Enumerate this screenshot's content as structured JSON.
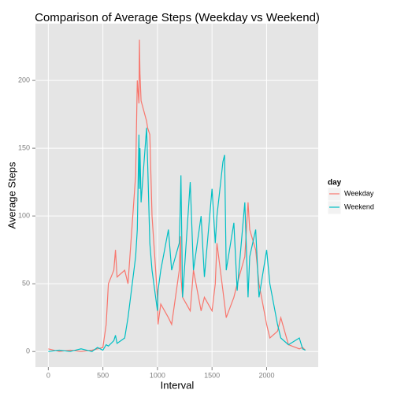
{
  "chart_data": {
    "type": "line",
    "title": "Comparison of Average Steps (Weekday vs Weekend)",
    "x_label": "Interval",
    "y_label": "Average Steps",
    "legend_title": "day",
    "legend": "right",
    "grid": true,
    "x": [
      0,
      100,
      200,
      300,
      400,
      450,
      500,
      530,
      550,
      600,
      615,
      630,
      700,
      730,
      800,
      815,
      830,
      835,
      840,
      850,
      900,
      910,
      930,
      950,
      1000,
      1005,
      1030,
      1100,
      1130,
      1200,
      1210,
      1215,
      1230,
      1300,
      1330,
      1400,
      1430,
      1500,
      1530,
      1545,
      1600,
      1615,
      1630,
      1700,
      1730,
      1800,
      1830,
      1845,
      1900,
      1930,
      2000,
      2030,
      2100,
      2130,
      2200,
      2300,
      2330,
      2355
    ],
    "series": [
      {
        "name": "Weekday",
        "color": "#F8766D",
        "values": [
          2,
          0,
          1,
          0,
          1,
          2,
          3,
          20,
          50,
          60,
          75,
          55,
          60,
          50,
          130,
          200,
          183,
          230,
          205,
          185,
          170,
          165,
          160,
          100,
          40,
          20,
          35,
          25,
          20,
          60,
          85,
          55,
          40,
          30,
          60,
          30,
          40,
          30,
          50,
          80,
          45,
          35,
          25,
          40,
          50,
          70,
          110,
          90,
          75,
          50,
          20,
          10,
          15,
          25,
          5,
          2,
          3,
          1
        ]
      },
      {
        "name": "Weekend",
        "color": "#00BFC4",
        "values": [
          0,
          1,
          0,
          2,
          0,
          3,
          1,
          5,
          4,
          8,
          12,
          6,
          10,
          25,
          70,
          90,
          160,
          120,
          150,
          110,
          165,
          140,
          80,
          60,
          30,
          45,
          60,
          90,
          60,
          80,
          110,
          130,
          40,
          125,
          60,
          100,
          55,
          120,
          80,
          100,
          140,
          145,
          60,
          95,
          45,
          110,
          40,
          70,
          90,
          40,
          75,
          50,
          20,
          10,
          5,
          10,
          2,
          1
        ]
      }
    ],
    "xlim": [
      -118,
      2473
    ],
    "ylim": [
      -11.5,
      241.9
    ],
    "xticks": [
      0,
      500,
      1000,
      1500,
      2000
    ],
    "yticks": [
      0,
      50,
      100,
      150,
      200
    ]
  }
}
